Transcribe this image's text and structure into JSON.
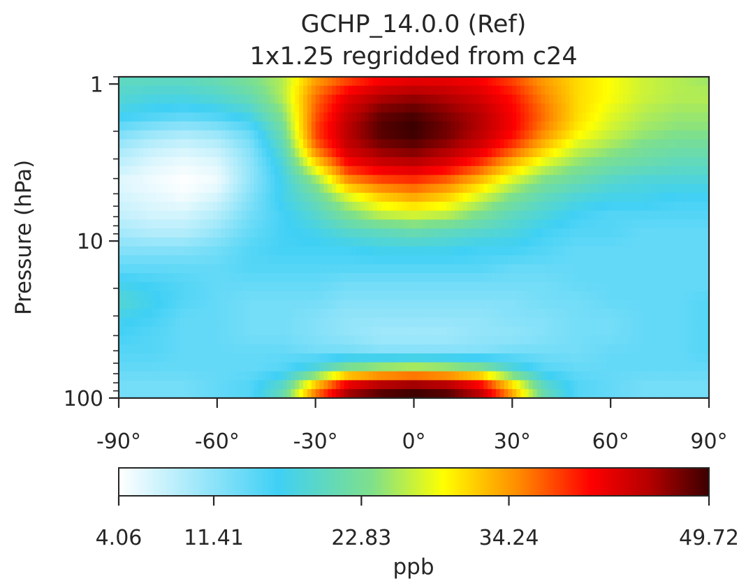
{
  "chart_data": {
    "type": "heatmap",
    "title": "GCHP_14.0.0 (Ref)",
    "subtitle": "1x1.25 regridded from c24",
    "xlabel": "",
    "ylabel": "Pressure (hPa)",
    "x_ticks": [
      {
        "value": -90,
        "label": "-90°"
      },
      {
        "value": -60,
        "label": "-60°"
      },
      {
        "value": -30,
        "label": "-30°"
      },
      {
        "value": 0,
        "label": "0°"
      },
      {
        "value": 30,
        "label": "30°"
      },
      {
        "value": 60,
        "label": "60°"
      },
      {
        "value": 90,
        "label": "90°"
      }
    ],
    "xlim": [
      -90,
      90
    ],
    "y_scale": "log",
    "y_inverted": true,
    "y_ticks": [
      {
        "value": 1,
        "label": "1"
      },
      {
        "value": 10,
        "label": "10"
      },
      {
        "value": 100,
        "label": "100"
      }
    ],
    "ylim": [
      100,
      0.9
    ],
    "latitudes": [
      -90,
      -80,
      -70,
      -60,
      -50,
      -40,
      -30,
      -20,
      -10,
      0,
      10,
      20,
      30,
      40,
      50,
      60,
      70,
      80,
      90
    ],
    "pressure_levels": [
      0.95,
      1.2,
      1.55,
      2.0,
      2.55,
      3.3,
      4.2,
      5.4,
      6.9,
      8.9,
      11.4,
      14.6,
      18.8,
      24.0,
      31.0,
      40.0,
      51.0,
      66.0,
      80.0,
      95.0
    ],
    "values": [
      [
        20,
        20,
        20,
        21,
        23,
        26,
        34,
        38,
        41,
        42,
        42,
        41,
        38,
        34,
        31,
        29,
        27,
        26,
        25
      ],
      [
        19,
        18,
        18,
        19,
        21,
        26,
        36,
        42,
        45,
        46,
        45,
        43,
        40,
        35,
        31,
        29,
        27,
        26,
        26
      ],
      [
        17,
        16,
        15,
        16,
        18,
        24,
        37,
        44,
        48,
        49,
        47,
        45,
        41,
        36,
        31,
        28,
        26,
        25,
        25
      ],
      [
        13,
        11,
        10,
        11,
        14,
        22,
        38,
        45,
        49,
        50,
        48,
        45,
        41,
        35,
        30,
        27,
        25,
        24,
        24
      ],
      [
        10,
        8,
        7,
        8,
        12,
        20,
        36,
        44,
        47,
        48,
        46,
        43,
        38,
        32,
        27,
        25,
        23,
        22,
        22
      ],
      [
        8,
        6,
        5,
        6,
        11,
        18,
        30,
        40,
        43,
        44,
        42,
        38,
        32,
        27,
        24,
        22,
        21,
        20,
        20
      ],
      [
        6,
        5,
        4,
        5,
        11,
        17,
        24,
        34,
        37,
        38,
        36,
        32,
        27,
        23,
        21,
        19,
        18,
        18,
        18
      ],
      [
        7,
        6,
        5,
        7,
        12,
        17,
        21,
        27,
        31,
        33,
        31,
        27,
        23,
        20,
        18,
        17,
        17,
        16,
        16
      ],
      [
        8,
        7,
        7,
        9,
        13,
        16,
        19,
        23,
        26,
        27,
        26,
        23,
        20,
        18,
        16,
        15,
        15,
        15,
        15
      ],
      [
        10,
        9,
        9,
        11,
        14,
        16,
        17,
        19,
        20,
        21,
        20,
        19,
        18,
        16,
        15,
        15,
        14,
        14,
        14
      ],
      [
        12,
        12,
        12,
        13,
        15,
        16,
        16,
        16,
        17,
        17,
        17,
        16,
        16,
        15,
        14,
        14,
        14,
        14,
        14
      ],
      [
        14,
        14,
        14,
        14,
        15,
        15,
        15,
        15,
        15,
        15,
        15,
        15,
        14,
        14,
        14,
        14,
        14,
        14,
        14
      ],
      [
        17,
        16,
        15,
        14,
        14,
        14,
        14,
        13,
        13,
        13,
        13,
        13,
        13,
        13,
        14,
        14,
        14,
        14,
        14
      ],
      [
        19,
        17,
        15,
        14,
        13,
        13,
        13,
        12,
        12,
        12,
        12,
        12,
        12,
        13,
        13,
        14,
        14,
        14,
        15
      ],
      [
        17,
        16,
        14,
        14,
        13,
        13,
        12,
        11,
        11,
        11,
        11,
        11,
        12,
        12,
        13,
        13,
        14,
        14,
        15
      ],
      [
        16,
        15,
        14,
        14,
        13,
        13,
        12,
        11,
        10,
        10,
        10,
        11,
        11,
        12,
        13,
        13,
        14,
        14,
        15
      ],
      [
        15,
        15,
        14,
        14,
        14,
        14,
        13,
        13,
        12,
        12,
        12,
        12,
        13,
        13,
        13,
        14,
        14,
        14,
        15
      ],
      [
        14,
        14,
        14,
        14,
        14,
        15,
        19,
        25,
        27,
        28,
        27,
        25,
        19,
        15,
        14,
        14,
        14,
        14,
        14
      ],
      [
        13,
        13,
        13,
        14,
        15,
        19,
        31,
        41,
        44,
        45,
        44,
        40,
        30,
        19,
        15,
        14,
        13,
        13,
        13
      ],
      [
        13,
        13,
        13,
        14,
        15,
        21,
        36,
        46,
        49,
        50,
        49,
        45,
        34,
        21,
        15,
        14,
        13,
        13,
        13
      ]
    ],
    "colorbar": {
      "label": "ppb",
      "min": 4.06,
      "max": 49.72,
      "ticks": [
        {
          "value": 4.06,
          "label": "4.06"
        },
        {
          "value": 11.41,
          "label": "11.41"
        },
        {
          "value": 22.83,
          "label": "22.83"
        },
        {
          "value": 34.24,
          "label": "34.24"
        },
        {
          "value": 49.72,
          "label": "49.72"
        }
      ],
      "colormap": [
        "#ffffff",
        "#3fd0f5",
        "#7fe08a",
        "#ffff00",
        "#ff8800",
        "#ff0000",
        "#b30000",
        "#3b0000"
      ],
      "colormap_stops": [
        0.0,
        0.27,
        0.43,
        0.55,
        0.68,
        0.8,
        0.9,
        1.0
      ]
    },
    "grid": false,
    "legend": "colorbar-bottom"
  }
}
